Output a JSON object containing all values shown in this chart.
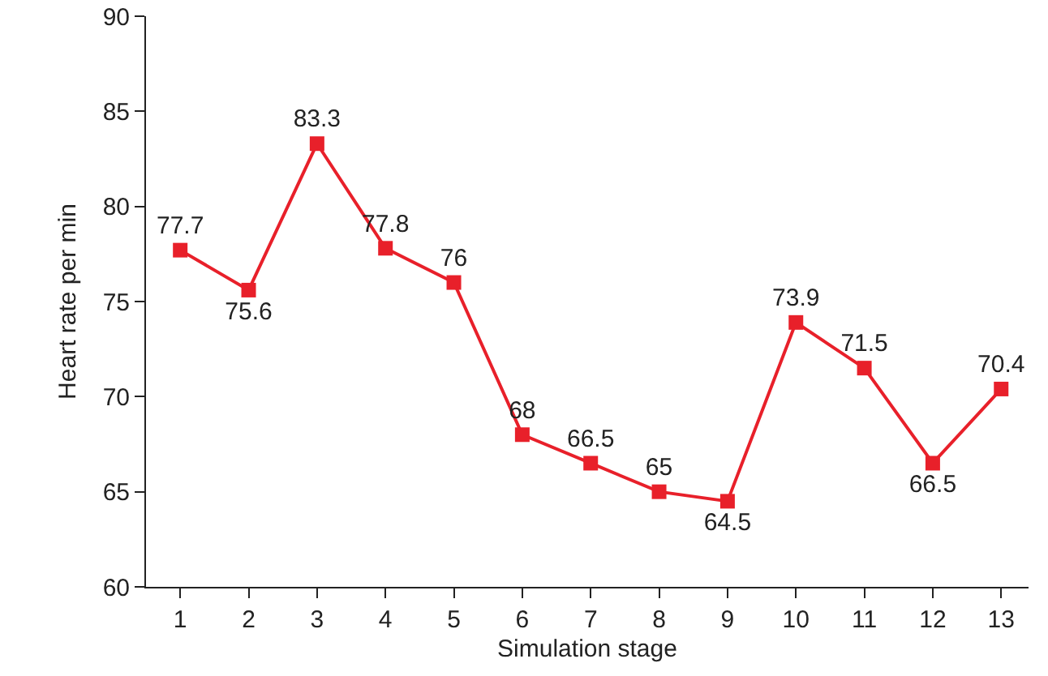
{
  "chart_data": {
    "type": "line",
    "xlabel": "Simulation stage",
    "ylabel": "Heart rate per min",
    "x": [
      1,
      2,
      3,
      4,
      5,
      6,
      7,
      8,
      9,
      10,
      11,
      12,
      13
    ],
    "series": [
      {
        "color": "#e8202a",
        "values": [
          77.7,
          75.6,
          83.3,
          77.8,
          76,
          68,
          66.5,
          65,
          64.5,
          73.9,
          71.5,
          66.5,
          70.4
        ]
      }
    ],
    "xlim": [
      0.5,
      13.4
    ],
    "xticks": [
      1,
      2,
      3,
      4,
      5,
      6,
      7,
      8,
      9,
      10,
      11,
      12,
      13
    ],
    "ylim": [
      60,
      90
    ],
    "yticks": [
      60,
      65,
      70,
      75,
      80,
      85,
      90
    ],
    "grid": false,
    "legend": false,
    "marker": "square",
    "line_style": "solid",
    "data_labels": true
  }
}
